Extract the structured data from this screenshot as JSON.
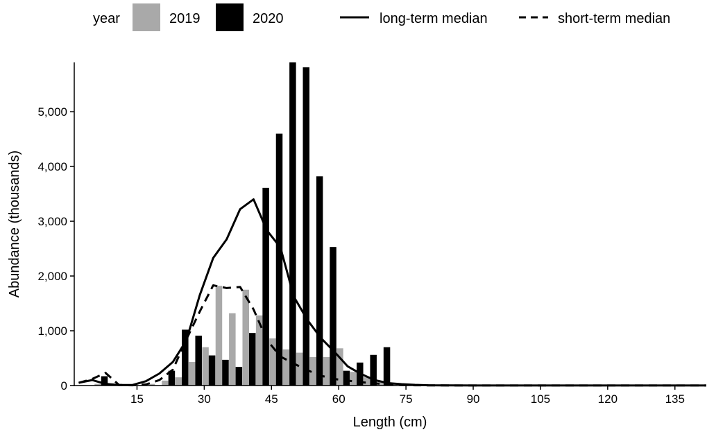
{
  "chart_data": {
    "type": "bar",
    "xlabel": "Length (cm)",
    "ylabel": "Abundance (thousands)",
    "xlim": [
      1,
      142
    ],
    "ylim": [
      0,
      5900
    ],
    "x_ticks": [
      15,
      30,
      45,
      60,
      75,
      90,
      105,
      120,
      135
    ],
    "x_tick_labels": [
      "15",
      "30",
      "45",
      "60",
      "75",
      "90",
      "105",
      "120",
      "135"
    ],
    "y_ticks": [
      0,
      1000,
      2000,
      3000,
      4000,
      5000
    ],
    "y_tick_labels": [
      "0",
      "1,000",
      "2,000",
      "3,000",
      "4,000",
      "5,000"
    ],
    "grid": false,
    "legend": {
      "position": "top",
      "fill_title": "year",
      "fill_items": [
        {
          "label": "2019",
          "color": "#a9a9a9"
        },
        {
          "label": "2020",
          "color": "#000000"
        }
      ],
      "line_items": [
        {
          "label": "long-term median",
          "style": "solid"
        },
        {
          "label": "short-term median",
          "style": "dashed"
        }
      ]
    },
    "bar_series": [
      {
        "name": "2019",
        "color": "#a9a9a9",
        "x": [
          7,
          10,
          13,
          16,
          19,
          22,
          25,
          28,
          31,
          34,
          37,
          40,
          43,
          46,
          49,
          52,
          55,
          58,
          61,
          64,
          67,
          70,
          73,
          76,
          79,
          82
        ],
        "values": [
          30,
          15,
          5,
          10,
          30,
          90,
          150,
          430,
          700,
          1820,
          1320,
          1750,
          1280,
          860,
          660,
          600,
          520,
          520,
          680,
          250,
          150,
          80,
          40,
          25,
          15,
          10
        ]
      },
      {
        "name": "2020",
        "color": "#000000",
        "x": [
          7,
          10,
          13,
          16,
          19,
          22,
          25,
          28,
          31,
          34,
          37,
          40,
          43,
          46,
          49,
          52,
          55,
          58,
          61,
          64,
          67,
          70,
          73,
          76,
          79,
          82
        ],
        "values": [
          170,
          0,
          0,
          0,
          0,
          270,
          1020,
          910,
          550,
          470,
          340,
          960,
          3610,
          4600,
          5900,
          5810,
          3820,
          2530,
          270,
          420,
          560,
          700,
          0,
          0,
          0,
          0
        ]
      }
    ],
    "line_series": [
      {
        "name": "long-term median",
        "style": "solid",
        "x": [
          2,
          5,
          8,
          11,
          14,
          17,
          20,
          23,
          26,
          29,
          32,
          35,
          38,
          41,
          44,
          47,
          50,
          53,
          56,
          59,
          62,
          65,
          68,
          71,
          74,
          77,
          80,
          85,
          90,
          95,
          100,
          110,
          120,
          130,
          140,
          142
        ],
        "y": [
          50,
          100,
          30,
          10,
          10,
          80,
          220,
          430,
          820,
          1650,
          2330,
          2670,
          3220,
          3400,
          2830,
          2520,
          1620,
          1200,
          870,
          620,
          350,
          210,
          100,
          45,
          25,
          12,
          5,
          3,
          2,
          2,
          1,
          1,
          1,
          1,
          1,
          1
        ]
      },
      {
        "name": "short-term median",
        "style": "dashed",
        "x": [
          2,
          5,
          8,
          11,
          14,
          17,
          20,
          23,
          26,
          29,
          32,
          35,
          38,
          41,
          44,
          47,
          50,
          53,
          56,
          59,
          62,
          65,
          68,
          71,
          74,
          77,
          80,
          85,
          90,
          100,
          120,
          142
        ],
        "y": [
          50,
          120,
          230,
          10,
          5,
          20,
          100,
          290,
          840,
          1350,
          1830,
          1780,
          1800,
          1390,
          830,
          530,
          400,
          280,
          180,
          120,
          90,
          60,
          40,
          20,
          10,
          5,
          3,
          2,
          1,
          1,
          1,
          1
        ]
      }
    ]
  }
}
